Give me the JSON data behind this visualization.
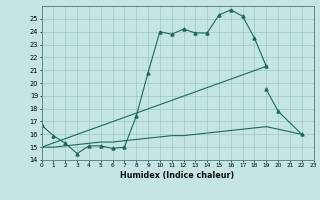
{
  "xlabel": "Humidex (Indice chaleur)",
  "background_color": "#c5e5e5",
  "grid_color": "#9dc8c8",
  "line_color": "#1a6b5a",
  "xlim": [
    0,
    23
  ],
  "ylim": [
    14,
    26
  ],
  "yticks": [
    14,
    15,
    16,
    17,
    18,
    19,
    20,
    21,
    22,
    23,
    24,
    25
  ],
  "xticks": [
    0,
    1,
    2,
    3,
    4,
    5,
    6,
    7,
    8,
    9,
    10,
    11,
    12,
    13,
    14,
    15,
    16,
    17,
    18,
    19,
    20,
    21,
    22,
    23
  ],
  "curve1_x": [
    0,
    1,
    2,
    3,
    4,
    5,
    6,
    7,
    8,
    9,
    10,
    11,
    12,
    13,
    14,
    15,
    16,
    17,
    18,
    19
  ],
  "curve1_y": [
    16.7,
    15.9,
    15.3,
    14.5,
    15.1,
    15.1,
    14.9,
    15.0,
    17.4,
    20.8,
    24.0,
    23.8,
    24.2,
    23.9,
    23.9,
    25.3,
    25.7,
    25.2,
    23.5,
    21.3
  ],
  "curve2_x": [
    19,
    20,
    22
  ],
  "curve2_y": [
    19.5,
    17.8,
    16.0
  ],
  "curve3_x": [
    0,
    19
  ],
  "curve3_y": [
    15.0,
    21.3
  ],
  "curve4_x": [
    0,
    1,
    2,
    3,
    4,
    5,
    6,
    7,
    8,
    9,
    10,
    11,
    12,
    13,
    14,
    15,
    16,
    17,
    18,
    19,
    22
  ],
  "curve4_y": [
    15.0,
    15.0,
    15.1,
    15.2,
    15.3,
    15.4,
    15.4,
    15.5,
    15.6,
    15.7,
    15.8,
    15.9,
    15.9,
    16.0,
    16.1,
    16.2,
    16.3,
    16.4,
    16.5,
    16.6,
    16.0
  ]
}
